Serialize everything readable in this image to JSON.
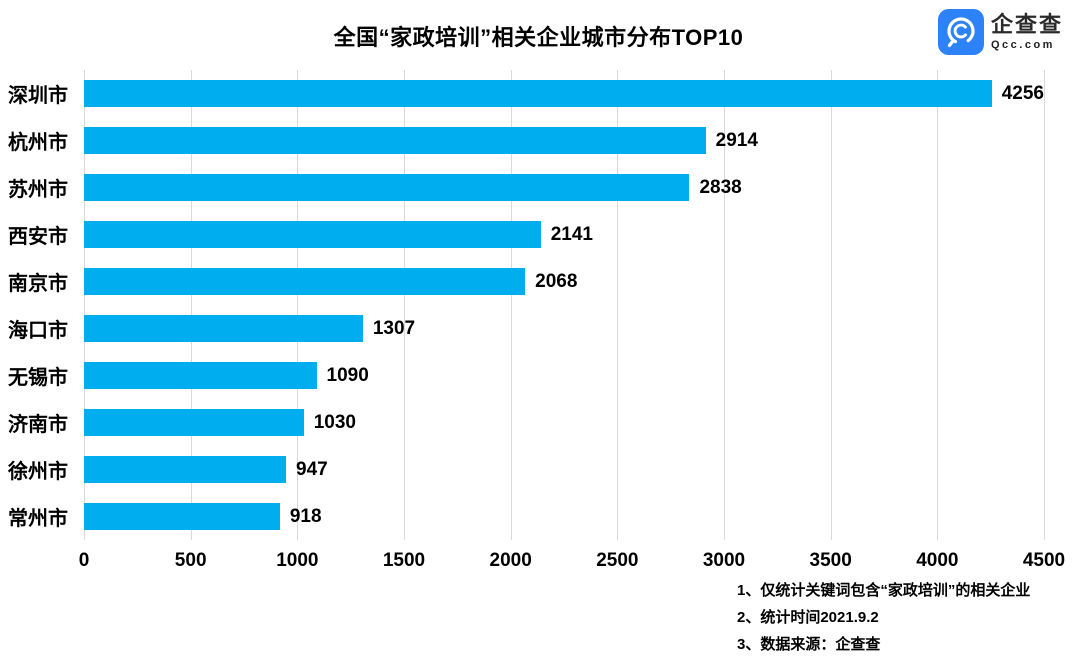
{
  "header": {
    "title": "全国“家政培训”相关企业城市分布TOP10"
  },
  "logo": {
    "name": "企查查",
    "domain": "Qcc.com",
    "brand_color": "#2e82f7",
    "icon": "qcc-magnifier-icon"
  },
  "chart_data": {
    "type": "bar",
    "orientation": "horizontal",
    "title": "全国“家政培训”相关企业城市分布TOP10",
    "categories": [
      "深圳市",
      "杭州市",
      "苏州市",
      "西安市",
      "南京市",
      "海口市",
      "无锡市",
      "济南市",
      "徐州市",
      "常州市"
    ],
    "values": [
      4256,
      2914,
      2838,
      2141,
      2068,
      1307,
      1090,
      1030,
      947,
      918
    ],
    "x_ticks": [
      0,
      500,
      1000,
      1500,
      2000,
      2500,
      3000,
      3500,
      4000,
      4500
    ],
    "xlim": [
      0,
      4500
    ],
    "xlabel": "",
    "ylabel": "",
    "bar_color": "#00aeef",
    "grid": true,
    "gridline_color": "#d9d9d9",
    "value_labels": true,
    "legend": false
  },
  "footnotes": {
    "lines": [
      "1、仅统计关键词包含“家政培训”的相关企业",
      "2、统计时间2021.9.2",
      "3、数据来源：企查查"
    ]
  }
}
